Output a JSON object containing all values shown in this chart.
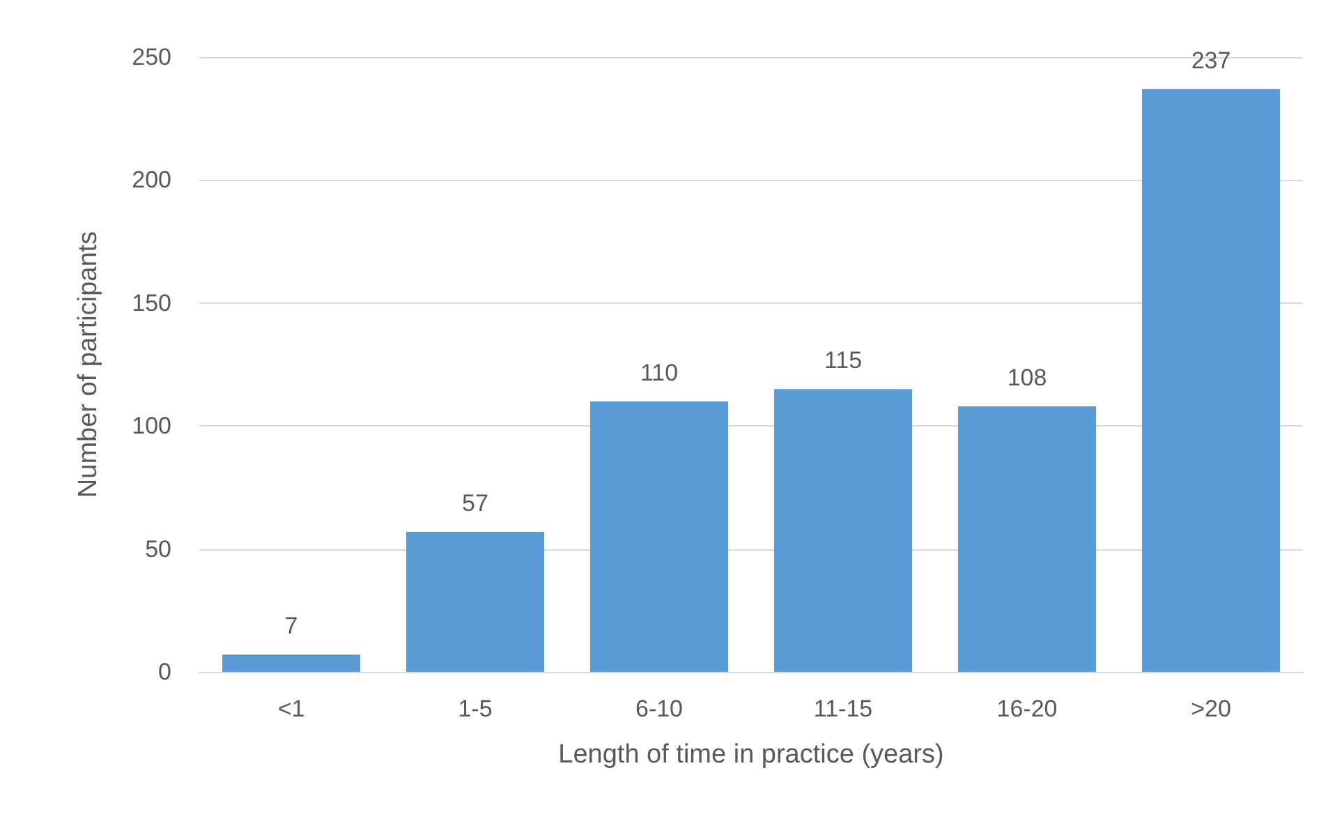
{
  "chart_data": {
    "type": "bar",
    "xlabel": "Length of time in practice (years)",
    "ylabel": "Number of participants",
    "categories": [
      "<1",
      "1-5",
      "6-10",
      "11-15",
      "16-20",
      ">20"
    ],
    "values": [
      7,
      57,
      110,
      115,
      108,
      237
    ],
    "color": "#5b9bd5",
    "ylim": [
      0,
      250
    ],
    "yticks": [
      0,
      50,
      100,
      150,
      200,
      250
    ],
    "grid": "y",
    "data_labels": true
  }
}
